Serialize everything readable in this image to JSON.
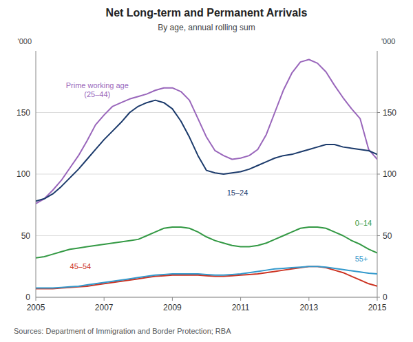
{
  "chart_data": {
    "type": "line",
    "title": "Net Long-term and Permanent Arrivals",
    "subtitle": "By age, annual rolling sum",
    "source": "Sources:   Department of Immigration and Border Protection; RBA",
    "ylabel": "'000",
    "y2label": "'000",
    "xlim": [
      2005.0,
      2015.0
    ],
    "ylim": [
      0,
      200
    ],
    "yticks": [
      0,
      50,
      100,
      150
    ],
    "y2lim": [
      0,
      200
    ],
    "y2ticks": [
      0,
      50,
      100,
      150
    ],
    "xticks": [
      2005,
      2007,
      2009,
      2011,
      2013,
      2015
    ],
    "grid": true,
    "x": [
      2005.0,
      2005.25,
      2005.5,
      2005.75,
      2006.0,
      2006.25,
      2006.5,
      2006.75,
      2007.0,
      2007.25,
      2007.5,
      2007.75,
      2008.0,
      2008.25,
      2008.5,
      2008.75,
      2009.0,
      2009.25,
      2009.5,
      2009.75,
      2010.0,
      2010.25,
      2010.5,
      2010.75,
      2011.0,
      2011.25,
      2011.5,
      2011.75,
      2012.0,
      2012.25,
      2012.5,
      2012.75,
      2013.0,
      2013.25,
      2013.5,
      2013.75,
      2014.0,
      2014.25,
      2014.5,
      2014.75,
      2015.0
    ],
    "series": [
      {
        "name": "Prime working age\n(25–44)",
        "color": "#9966BB",
        "label_x": 2006.8,
        "label_y": 175,
        "values": [
          76,
          80,
          87,
          95,
          105,
          115,
          127,
          140,
          148,
          155,
          158,
          161,
          163,
          165,
          168,
          170,
          170,
          167,
          160,
          145,
          130,
          119,
          115,
          112,
          113,
          115,
          120,
          132,
          150,
          168,
          182,
          191,
          193,
          190,
          183,
          172,
          162,
          153,
          145,
          120,
          112
        ]
      },
      {
        "name": "15–24",
        "color": "#1B3A6B",
        "label_x": 2010.6,
        "label_y": 88,
        "values": [
          78,
          80,
          84,
          90,
          97,
          104,
          112,
          120,
          128,
          135,
          142,
          150,
          155,
          158,
          160,
          158,
          153,
          143,
          130,
          115,
          103,
          101,
          100,
          101,
          102,
          104,
          107,
          110,
          113,
          115,
          116,
          118,
          120,
          122,
          124,
          124,
          122,
          121,
          120,
          119,
          116
        ]
      },
      {
        "name": "0–14",
        "color": "#339944",
        "label_x": 2014.35,
        "label_y": 60,
        "values": [
          32,
          33,
          35,
          37,
          39,
          40,
          41,
          42,
          43,
          44,
          45,
          46,
          47,
          50,
          53,
          56,
          57,
          57,
          56,
          53,
          49,
          46,
          44,
          42,
          41,
          41,
          42,
          44,
          47,
          50,
          53,
          56,
          57,
          57,
          56,
          53,
          50,
          46,
          43,
          39,
          36
        ]
      },
      {
        "name": "45–54",
        "color": "#CC3322",
        "label_x": 2006.0,
        "label_y": 21,
        "values": [
          7,
          7,
          7,
          7.5,
          8,
          8.5,
          9,
          10,
          11,
          12,
          13,
          14,
          15,
          16,
          17,
          17.5,
          18,
          18,
          18,
          18,
          17.5,
          17,
          17,
          17.5,
          18,
          18.5,
          19,
          20,
          21,
          22,
          23,
          24,
          25,
          25,
          24,
          22,
          20,
          17,
          14,
          11,
          9
        ]
      },
      {
        "name": "55+",
        "color": "#3399CC",
        "label_x": 2014.35,
        "label_y": 31,
        "values": [
          7.5,
          7.5,
          7.5,
          8,
          8.5,
          9,
          10,
          11,
          12,
          13,
          14,
          15,
          16,
          17,
          18,
          18.5,
          19,
          19,
          19,
          19,
          18.5,
          18,
          18,
          18.5,
          19,
          20,
          21,
          22,
          23,
          23.5,
          24,
          24.5,
          25,
          25,
          24.5,
          23.5,
          22.5,
          21.5,
          20.5,
          19.5,
          19
        ]
      }
    ]
  }
}
